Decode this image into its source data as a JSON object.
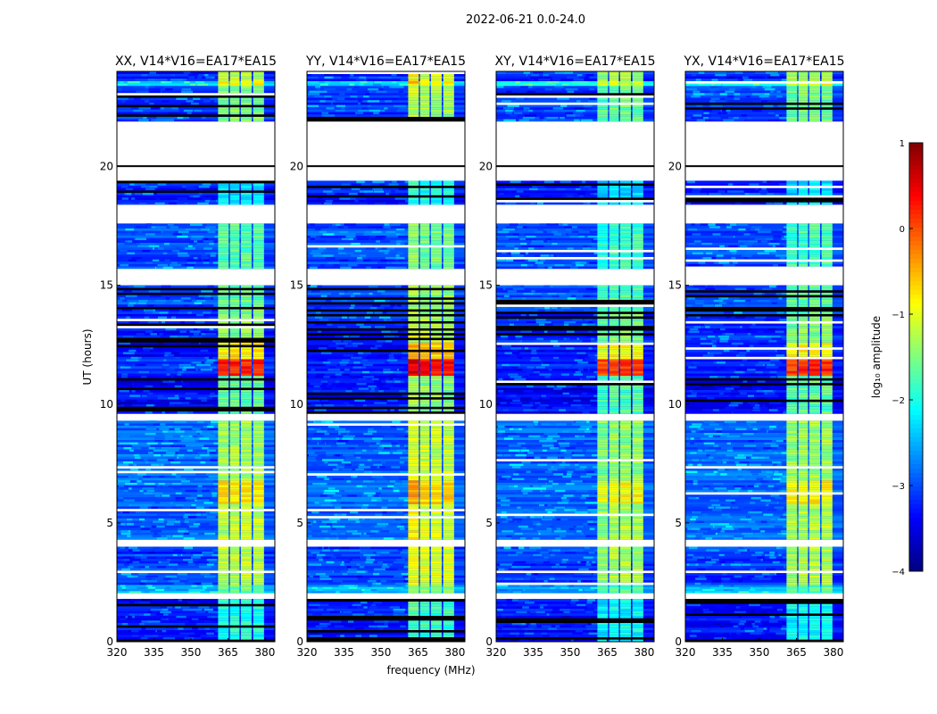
{
  "chart_data": {
    "type": "heatmap",
    "suptitle": "2022-06-21 0.0-24.0",
    "xlabel": "frequency (MHz)",
    "ylabel": "UT (hours)",
    "xlim": [
      320,
      384
    ],
    "ylim": [
      0,
      24
    ],
    "xticks": [
      "320",
      "335",
      "350",
      "365",
      "380"
    ],
    "xtick_values": [
      320,
      335,
      350,
      365,
      380
    ],
    "yticks": [
      "0",
      "5",
      "10",
      "15",
      "20"
    ],
    "ytick_values": [
      0,
      5,
      10,
      15,
      20
    ],
    "panels": [
      {
        "title": "XX, V14*V16=EA17*EA15",
        "hot_offset": 0
      },
      {
        "title": "YY, V14*V16=EA17*EA15",
        "hot_offset": 0.3
      },
      {
        "title": "XY, V14*V16=EA17*EA15",
        "hot_offset": -0.2
      },
      {
        "title": "YX, V14*V16=EA17*EA15",
        "hot_offset": -0.1
      }
    ],
    "colorbar": {
      "label": "log₁₀ amplitude",
      "range": [
        -4,
        1
      ],
      "ticks": [
        "1",
        "0",
        "−1",
        "−2",
        "−3",
        "−4"
      ],
      "tick_values": [
        1,
        0,
        -1,
        -2,
        -3,
        -4
      ],
      "colormap": "jet"
    },
    "rfi_strips_mhz": [
      [
        361,
        365.3
      ],
      [
        365.8,
        369.7
      ],
      [
        370.2,
        374.6
      ],
      [
        375.2,
        379.6
      ]
    ],
    "segments": [
      {
        "t0": 0,
        "t1": 1.8,
        "bg": -3.3,
        "strip": -2.0,
        "lines": true
      },
      {
        "t0": 1.8,
        "t1": 2.05,
        "flag": true
      },
      {
        "t0": 2.05,
        "t1": 2.4,
        "bg": -2.5,
        "strip": -1.6
      },
      {
        "t0": 2.4,
        "t1": 4.0,
        "bg": -3.1,
        "strip": -1.2
      },
      {
        "t0": 4.0,
        "t1": 4.3,
        "flag": true
      },
      {
        "t0": 4.3,
        "t1": 5.8,
        "bg": -2.9,
        "strip": -1.2
      },
      {
        "t0": 5.8,
        "t1": 6.8,
        "bg": -2.9,
        "strip": -0.8
      },
      {
        "t0": 6.8,
        "t1": 9.3,
        "bg": -2.9,
        "strip": -1.3
      },
      {
        "t0": 9.3,
        "t1": 9.6,
        "flag": true
      },
      {
        "t0": 9.6,
        "t1": 11.2,
        "bg": -3.4,
        "strip": -1.6,
        "lines": true
      },
      {
        "t0": 11.2,
        "t1": 11.9,
        "bg": -3.2,
        "strip": 0.2
      },
      {
        "t0": 11.9,
        "t1": 12.6,
        "bg": -3.3,
        "strip": -0.8,
        "lines": true
      },
      {
        "t0": 12.6,
        "t1": 13.8,
        "bg": -3.2,
        "strip": -1.4,
        "lines": true
      },
      {
        "t0": 13.8,
        "t1": 15.0,
        "bg": -3.0,
        "strip": -1.6,
        "lines": true
      },
      {
        "t0": 15.0,
        "t1": 15.7,
        "flag": true
      },
      {
        "t0": 15.7,
        "t1": 17.6,
        "bg": -3.0,
        "strip": -1.7
      },
      {
        "t0": 17.6,
        "t1": 18.4,
        "flag": true
      },
      {
        "t0": 18.4,
        "t1": 19.4,
        "bg": -3.3,
        "strip": -2.2,
        "lines": true
      },
      {
        "t0": 19.4,
        "t1": 21.9,
        "flag": true
      },
      {
        "t0": 21.9,
        "t1": 23.4,
        "bg": -3.1,
        "strip": -1.5,
        "lines": true
      },
      {
        "t0": 23.4,
        "t1": 23.6,
        "bg": -2.2,
        "strip": -0.9
      },
      {
        "t0": 23.6,
        "t1": 24,
        "bg": -3.2,
        "strip": -1.2
      }
    ]
  }
}
